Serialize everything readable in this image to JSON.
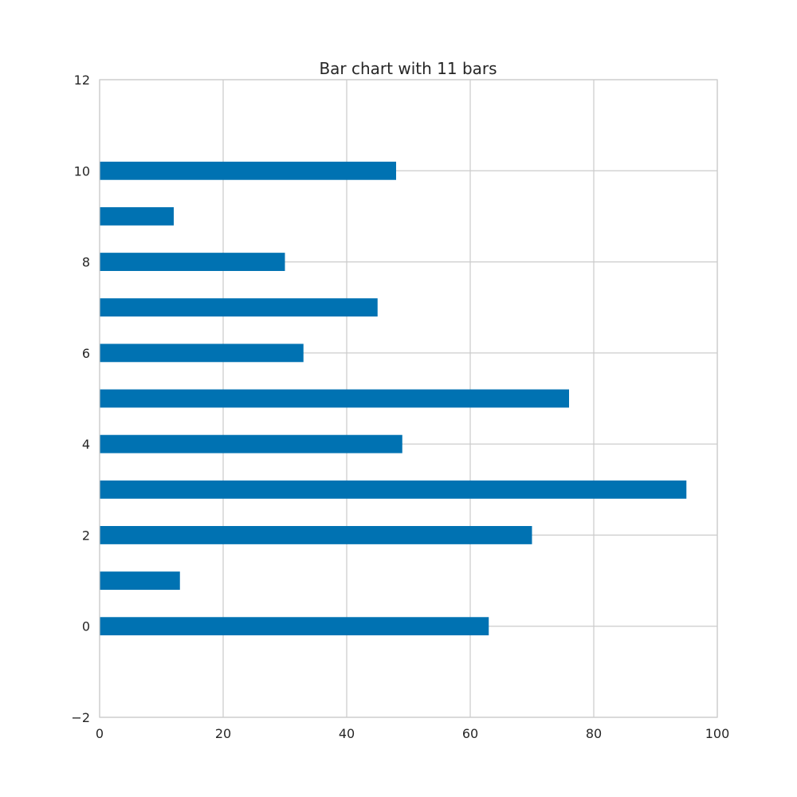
{
  "chart_data": {
    "type": "bar",
    "orientation": "horizontal",
    "title": "Bar chart with 11 bars",
    "xlabel": "",
    "ylabel": "",
    "categories": [
      0,
      1,
      2,
      3,
      4,
      5,
      6,
      7,
      8,
      9,
      10
    ],
    "values": [
      63,
      13,
      70,
      95,
      49,
      76,
      33,
      45,
      30,
      12,
      48
    ],
    "xlim": [
      0,
      100
    ],
    "ylim": [
      -2,
      12
    ],
    "x_ticks": [
      "0",
      "20",
      "40",
      "60",
      "80",
      "100"
    ],
    "y_ticks": [
      "−2",
      "0",
      "2",
      "4",
      "6",
      "8",
      "10",
      "12"
    ],
    "grid": true,
    "bar_color": "#0072b2",
    "grid_color": "#cccccc"
  }
}
